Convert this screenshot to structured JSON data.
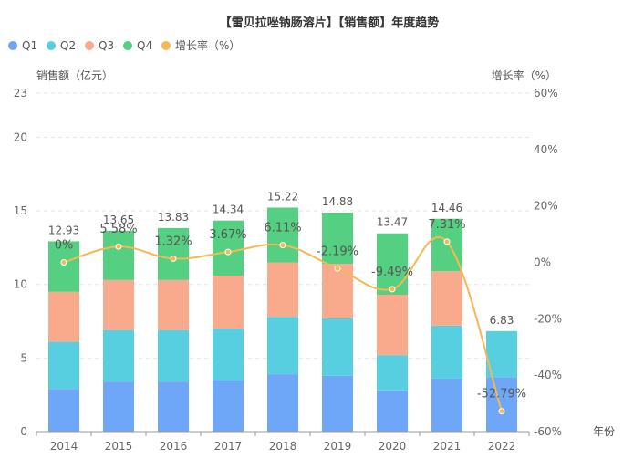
{
  "chart_data": {
    "type": "bar",
    "stacked": true,
    "title": "【雷贝拉唑钠肠溶片】【销售额】年度趋势",
    "ylabel": "销售额（亿元）",
    "y2label": "增长率（%）",
    "xlabel": "年份",
    "categories": [
      "2014",
      "2015",
      "2016",
      "2017",
      "2018",
      "2019",
      "2020",
      "2021",
      "2022"
    ],
    "ylim": [
      0,
      23
    ],
    "yticks": [
      "0",
      "5",
      "10",
      "15",
      "20",
      "23"
    ],
    "y2lim": [
      -60,
      60
    ],
    "y2ticks": [
      "-60%",
      "-40%",
      "-20%",
      "0%",
      "20%",
      "40%",
      "60%"
    ],
    "grid": true,
    "legend_position": "top-left",
    "series": [
      {
        "name": "Q1",
        "type": "bar",
        "color": "#6ea6f8",
        "values": [
          2.9,
          3.4,
          3.4,
          3.5,
          3.9,
          3.8,
          2.8,
          3.6,
          3.7
        ]
      },
      {
        "name": "Q2",
        "type": "bar",
        "color": "#58cfe0",
        "values": [
          3.2,
          3.5,
          3.5,
          3.5,
          3.9,
          3.9,
          2.4,
          3.6,
          3.13
        ]
      },
      {
        "name": "Q3",
        "type": "bar",
        "color": "#f9aa8c",
        "values": [
          3.4,
          3.4,
          3.4,
          3.6,
          3.7,
          3.7,
          4.1,
          3.7,
          0
        ]
      },
      {
        "name": "Q4",
        "type": "bar",
        "color": "#55cf81",
        "values": [
          3.43,
          3.35,
          3.53,
          3.74,
          3.72,
          3.48,
          4.17,
          3.56,
          0
        ]
      },
      {
        "name": "增长率（%）",
        "type": "line",
        "axis": "right",
        "color": "#f5b853",
        "values": [
          0,
          5.58,
          1.32,
          3.67,
          6.11,
          -2.19,
          -9.49,
          7.31,
          -52.79
        ]
      }
    ],
    "totals": [
      "12.93",
      "13.65",
      "13.83",
      "14.34",
      "15.22",
      "14.88",
      "13.47",
      "14.46",
      "6.83"
    ],
    "total_values": [
      12.93,
      13.65,
      13.83,
      14.34,
      15.22,
      14.88,
      13.47,
      14.46,
      6.83
    ],
    "growth_labels": [
      "0%",
      "5.58%",
      "1.32%",
      "3.67%",
      "6.11%",
      "-2.19%",
      "-9.49%",
      "7.31%",
      "-52.79%"
    ]
  }
}
